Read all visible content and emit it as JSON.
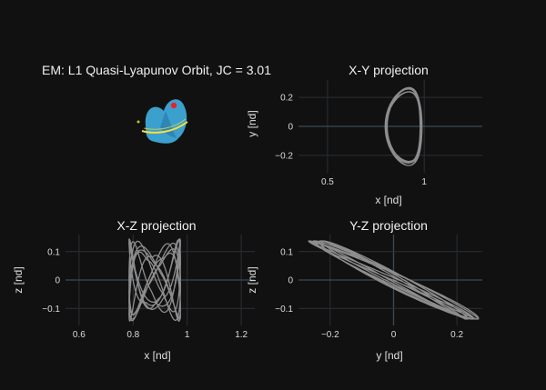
{
  "chart_data": [
    {
      "type": "3d-surface",
      "title": "EM: L1 Quasi-Lyapunov Orbit, JC = 3.01",
      "colors": {
        "torus": "#3fa9d9",
        "torus_dark": "#2a7fb0",
        "orbit_line": "#f5e13b",
        "current_point": "#e8232b",
        "primary": "#d4c21a"
      }
    },
    {
      "type": "line",
      "title": "X-Y projection",
      "xlabel": "x [nd]",
      "ylabel": "y [nd]",
      "xlim": [
        0.35,
        1.3
      ],
      "ylim": [
        -0.32,
        0.32
      ],
      "xticks": [
        "0.5",
        "1"
      ],
      "xtick_values": [
        0.5,
        1.0
      ],
      "yticks": [
        "0.2",
        "0",
        "−0.2"
      ],
      "ytick_values": [
        0.2,
        0.0,
        -0.2
      ],
      "grid": true,
      "orbit": {
        "center": [
          0.92,
          0.0
        ],
        "x_half_width": 0.09,
        "y_amplitude": 0.27,
        "indent": 0.045,
        "turns": 6,
        "color": "#8d8d8d"
      }
    },
    {
      "type": "line",
      "title": "X-Z projection",
      "xlabel": "x [nd]",
      "ylabel": "z [nd]",
      "xlim": [
        0.55,
        1.25
      ],
      "ylim": [
        -0.16,
        0.16
      ],
      "xticks": [
        "0.6",
        "0.8",
        "1",
        "1.2"
      ],
      "xtick_values": [
        0.6,
        0.8,
        1.0,
        1.2
      ],
      "yticks": [
        "0.1",
        "0",
        "−0.1"
      ],
      "ytick_values": [
        0.1,
        0.0,
        -0.1
      ],
      "grid": true,
      "orbit": {
        "x_min": 0.785,
        "x_max": 0.975,
        "z_amplitude": 0.145,
        "turns": 7,
        "color": "#8d8d8d"
      }
    },
    {
      "type": "line",
      "title": "Y-Z projection",
      "xlabel": "y [nd]",
      "ylabel": "z [nd]",
      "xlim": [
        -0.3,
        0.28
      ],
      "ylim": [
        -0.16,
        0.16
      ],
      "xticks": [
        "−0.2",
        "0",
        "0.2"
      ],
      "xtick_values": [
        -0.2,
        0.0,
        0.2
      ],
      "yticks": [
        "0.1",
        "0",
        "−0.1"
      ],
      "ytick_values": [
        0.1,
        0.0,
        -0.1
      ],
      "grid": true,
      "orbit": {
        "y_amplitude": 0.27,
        "z_amplitude": 0.145,
        "turns": 7,
        "color": "#8d8d8d"
      }
    }
  ]
}
